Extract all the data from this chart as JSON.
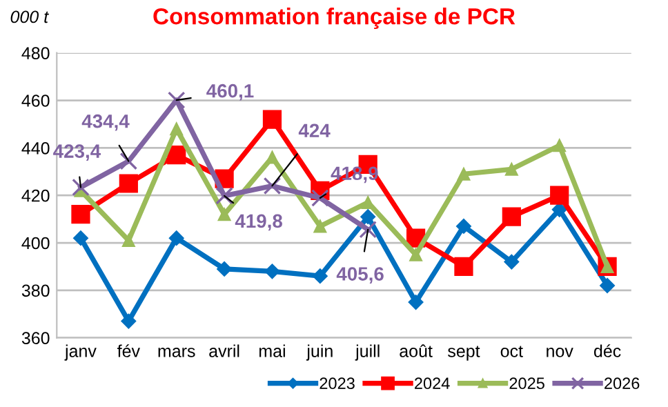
{
  "chart_data": {
    "type": "line",
    "title": "Consommation française de PCR",
    "ylabel": "000 t",
    "categories": [
      "janv",
      "fév",
      "mars",
      "avril",
      "mai",
      "juin",
      "juill",
      "août",
      "sept",
      "oct",
      "nov",
      "déc"
    ],
    "ylim": [
      360,
      480
    ],
    "yticks": [
      360,
      380,
      400,
      420,
      440,
      460,
      480
    ],
    "grid": "y",
    "legend": "bottom right",
    "series": [
      {
        "name": "2023",
        "color": "#0070c0",
        "marker": "diamond",
        "values": [
          402,
          367,
          402,
          389,
          388,
          386,
          411,
          375,
          407,
          392,
          414,
          382
        ]
      },
      {
        "name": "2024",
        "color": "#ff0000",
        "marker": "square",
        "values": [
          412,
          425,
          437,
          427,
          452,
          422,
          433,
          402,
          390,
          411,
          420,
          390
        ]
      },
      {
        "name": "2025",
        "color": "#9bbb59",
        "marker": "triangle",
        "values": [
          422,
          401,
          448,
          412,
          436,
          407,
          417,
          395,
          429,
          431,
          441,
          390
        ]
      },
      {
        "name": "2026",
        "color": "#8064a2",
        "marker": "cross",
        "values": [
          423.4,
          434.4,
          460.1,
          419.8,
          424,
          418.9,
          405.6,
          null,
          null,
          null,
          null,
          null
        ],
        "value_labels": [
          "423,4",
          "434,4",
          "460,1",
          "419,8",
          "424",
          "418,9",
          "405,6",
          null,
          null,
          null,
          null,
          null
        ]
      }
    ]
  }
}
